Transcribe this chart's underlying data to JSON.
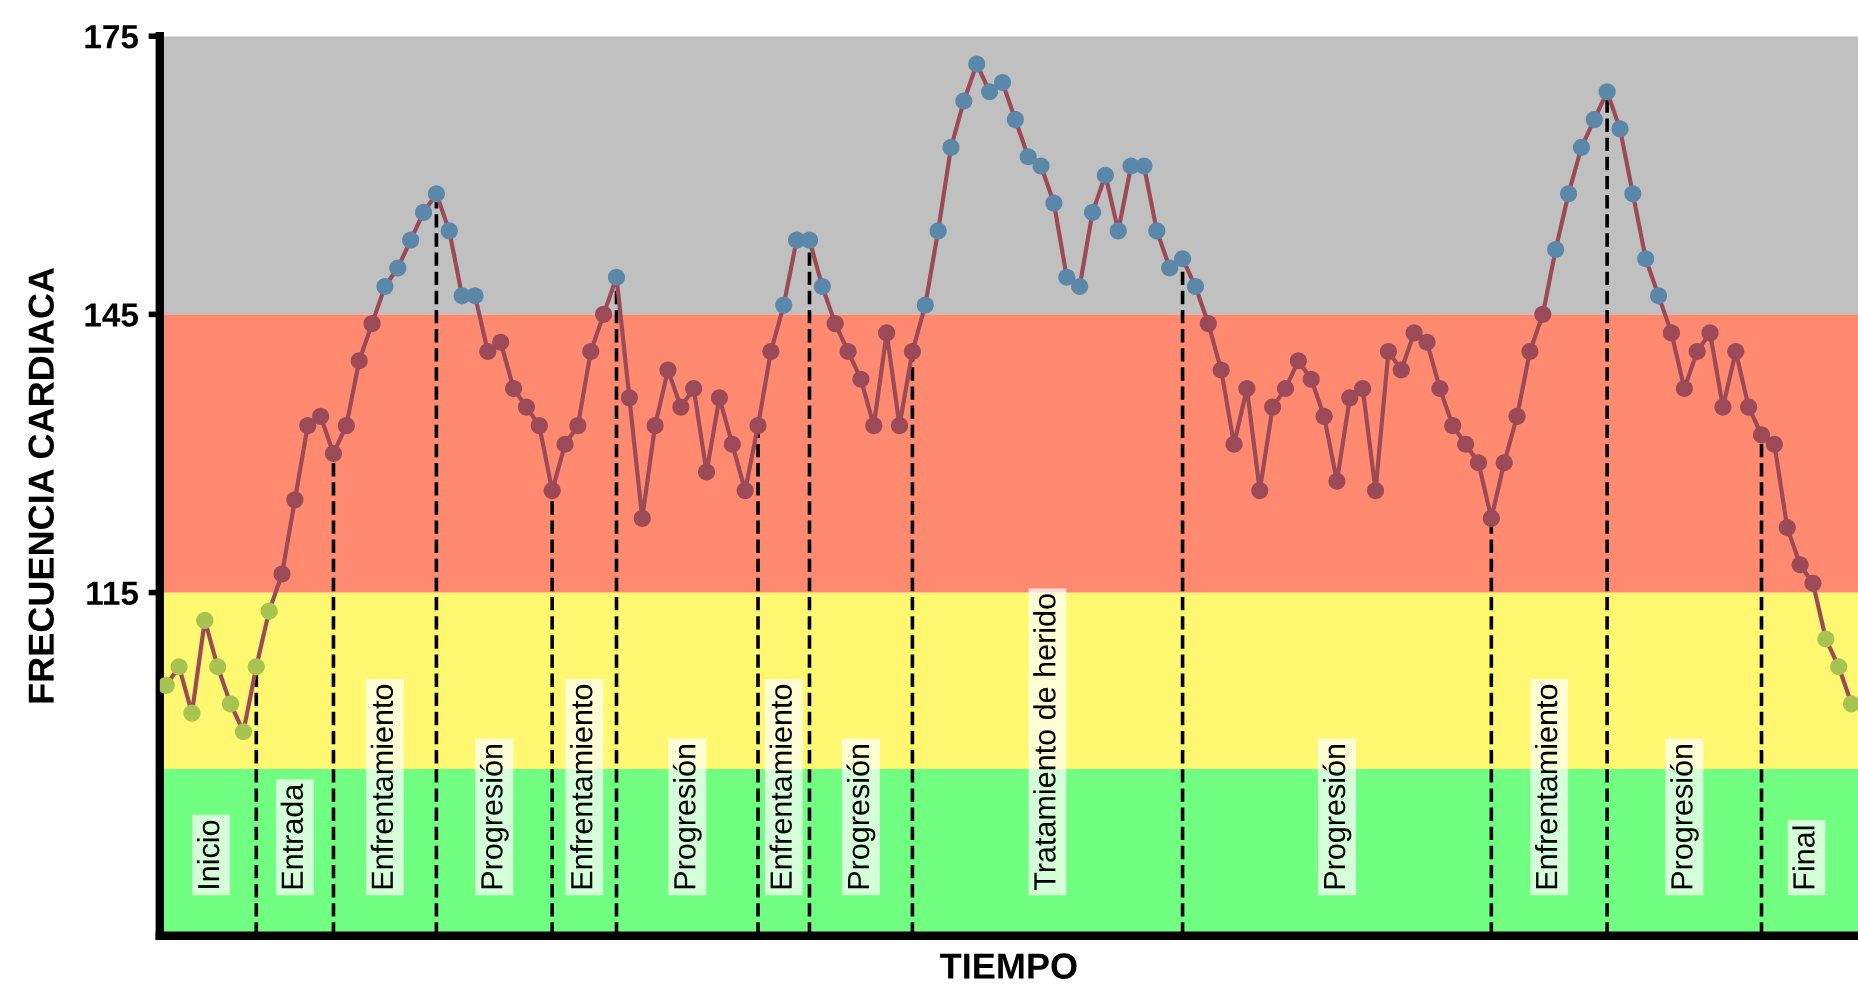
{
  "chart_data": {
    "type": "line",
    "xlabel": "TIEMPO",
    "ylabel": "FRECUENCIA CARDIACA",
    "categories": [
      null,
      null,
      null,
      null,
      null,
      null,
      null,
      null,
      null,
      null,
      null,
      null,
      null,
      null,
      null,
      null,
      null,
      null,
      null,
      null,
      null,
      null,
      null,
      null,
      null,
      null,
      null,
      null,
      null,
      null,
      null,
      null,
      null,
      null,
      null,
      null,
      null,
      null,
      null,
      null,
      null,
      null,
      null,
      null,
      null,
      null,
      null,
      null,
      null,
      null,
      null,
      null,
      null,
      null,
      null,
      null,
      null,
      null,
      null,
      null,
      null,
      null,
      null,
      null,
      null,
      null,
      null,
      null,
      null,
      null,
      null,
      null,
      null,
      null,
      null,
      null,
      null,
      null,
      null,
      null,
      null,
      null,
      null,
      null,
      null,
      null,
      null,
      null,
      null,
      null,
      null,
      null,
      null,
      null,
      null,
      null,
      null,
      null,
      null,
      null,
      null,
      null,
      null,
      null,
      null,
      null,
      null,
      null,
      null,
      null,
      null,
      null,
      null,
      null,
      null,
      null,
      null,
      null,
      null,
      null,
      null,
      null,
      null,
      null,
      null,
      null,
      null,
      null,
      null,
      null,
      null,
      null
    ],
    "ylim": [
      78,
      175
    ],
    "yticks": [
      115,
      145,
      175
    ],
    "tick_labels": "y",
    "grid": false,
    "legend": false,
    "marker": "circle",
    "line_style": "solid",
    "series": [
      {
        "color": "#9c4a58",
        "values": [
          105,
          107,
          102,
          112,
          107,
          103,
          100,
          107,
          113,
          117,
          125,
          133,
          134,
          130,
          133,
          140,
          144,
          148,
          150,
          153,
          156,
          158,
          154,
          147,
          147,
          141,
          142,
          137,
          135,
          133,
          126,
          131,
          133,
          141,
          145,
          149,
          136,
          123,
          133,
          139,
          135,
          137,
          128,
          136,
          131,
          126,
          133,
          141,
          146,
          153,
          153,
          148,
          144,
          141,
          138,
          133,
          143,
          133,
          141,
          146,
          154,
          163,
          168,
          172,
          169,
          170,
          166,
          162,
          161,
          157,
          149,
          148,
          156,
          160,
          154,
          161,
          161,
          154,
          150,
          151,
          148,
          144,
          139,
          131,
          137,
          126,
          135,
          137,
          140,
          138,
          134,
          127,
          136,
          137,
          126,
          141,
          139,
          143,
          142,
          137,
          133,
          131,
          129,
          123,
          129,
          134,
          141,
          145,
          152,
          158,
          163,
          166,
          169,
          165,
          158,
          151,
          147,
          143,
          137,
          141,
          143,
          135,
          141,
          135,
          132,
          131,
          122,
          118,
          116,
          110,
          107,
          103
        ],
        "colors": [
          "#a8c450",
          "#a8c450",
          "#a8c450",
          "#a8c450",
          "#a8c450",
          "#a8c450",
          "#a8c450",
          "#a8c450",
          "#a8c450",
          "#9c4a58",
          "#9c4a58",
          "#9c4a58",
          "#9c4a58",
          "#9c4a58",
          "#9c4a58",
          "#9c4a58",
          "#9c4a58",
          "#5b88a8",
          "#5b88a8",
          "#5b88a8",
          "#5b88a8",
          "#5b88a8",
          "#5b88a8",
          "#5b88a8",
          "#5b88a8",
          "#9c4a58",
          "#9c4a58",
          "#9c4a58",
          "#9c4a58",
          "#9c4a58",
          "#9c4a58",
          "#9c4a58",
          "#9c4a58",
          "#9c4a58",
          "#9c4a58",
          "#5b88a8",
          "#9c4a58",
          "#9c4a58",
          "#9c4a58",
          "#9c4a58",
          "#9c4a58",
          "#9c4a58",
          "#9c4a58",
          "#9c4a58",
          "#9c4a58",
          "#9c4a58",
          "#9c4a58",
          "#9c4a58",
          "#5b88a8",
          "#5b88a8",
          "#5b88a8",
          "#5b88a8",
          "#9c4a58",
          "#9c4a58",
          "#9c4a58",
          "#9c4a58",
          "#9c4a58",
          "#9c4a58",
          "#9c4a58",
          "#5b88a8",
          "#5b88a8",
          "#5b88a8",
          "#5b88a8",
          "#5b88a8",
          "#5b88a8",
          "#5b88a8",
          "#5b88a8",
          "#5b88a8",
          "#5b88a8",
          "#5b88a8",
          "#5b88a8",
          "#5b88a8",
          "#5b88a8",
          "#5b88a8",
          "#5b88a8",
          "#5b88a8",
          "#5b88a8",
          "#5b88a8",
          "#5b88a8",
          "#5b88a8",
          "#5b88a8",
          "#9c4a58",
          "#9c4a58",
          "#9c4a58",
          "#9c4a58",
          "#9c4a58",
          "#9c4a58",
          "#9c4a58",
          "#9c4a58",
          "#9c4a58",
          "#9c4a58",
          "#9c4a58",
          "#9c4a58",
          "#9c4a58",
          "#9c4a58",
          "#9c4a58",
          "#9c4a58",
          "#9c4a58",
          "#9c4a58",
          "#9c4a58",
          "#9c4a58",
          "#9c4a58",
          "#9c4a58",
          "#9c4a58",
          "#9c4a58",
          "#9c4a58",
          "#9c4a58",
          "#9c4a58",
          "#5b88a8",
          "#5b88a8",
          "#5b88a8",
          "#5b88a8",
          "#5b88a8",
          "#5b88a8",
          "#5b88a8",
          "#5b88a8",
          "#5b88a8",
          "#9c4a58",
          "#9c4a58",
          "#9c4a58",
          "#9c4a58",
          "#9c4a58",
          "#9c4a58",
          "#9c4a58",
          "#9c4a58",
          "#9c4a58",
          "#9c4a58",
          "#9c4a58",
          "#9c4a58",
          "#a8c450",
          "#a8c450",
          "#a8c450"
        ]
      }
    ],
    "bands": [
      {
        "axis": "y",
        "from": 78,
        "to": 96,
        "color": "#70ff80"
      },
      {
        "axis": "y",
        "from": 96,
        "to": 115,
        "color": "#fff870"
      },
      {
        "axis": "y",
        "from": 115,
        "to": 145,
        "color": "#ff8a70"
      },
      {
        "axis": "y",
        "from": 145,
        "to": 175,
        "color": "#c0c0c0"
      }
    ],
    "annotations": [
      "Inicio",
      "Entrada",
      "Enfrentamiento",
      "Progresión",
      "Enfrentamiento",
      "Progresión",
      "Enfrentamiento",
      "Progresión",
      "Tratamiento de herido",
      "Progresión",
      "Enfrentamiento",
      "Progresión",
      "Final"
    ]
  }
}
